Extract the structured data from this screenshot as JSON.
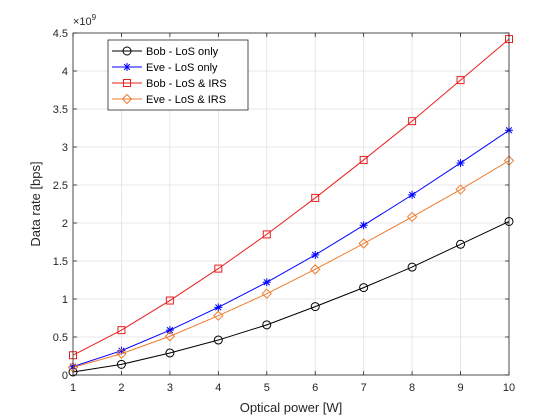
{
  "chart_data": {
    "type": "line",
    "xlabel": "Optical power [W]",
    "ylabel": "Data rate [bps]",
    "y_exponent_label": "×10",
    "y_exponent_power": "9",
    "x": [
      1,
      2,
      3,
      4,
      5,
      6,
      7,
      8,
      9,
      10
    ],
    "xlim": [
      1,
      10
    ],
    "ylim": [
      0,
      4.5
    ],
    "x_ticks": [
      "1",
      "2",
      "3",
      "4",
      "5",
      "6",
      "7",
      "8",
      "9",
      "10"
    ],
    "y_ticks": [
      "0",
      "0.5",
      "1",
      "1.5",
      "2",
      "2.5",
      "3",
      "3.5",
      "4",
      "4.5"
    ],
    "grid": true,
    "legend_position": "top-left",
    "series": [
      {
        "name": "Bob - LoS only",
        "color": "#000000",
        "marker": "circle",
        "values": [
          0.04,
          0.14,
          0.29,
          0.46,
          0.66,
          0.9,
          1.15,
          1.42,
          1.72,
          2.02
        ]
      },
      {
        "name": "Eve - LoS only",
        "color": "#0000ff",
        "marker": "star",
        "values": [
          0.11,
          0.32,
          0.59,
          0.89,
          1.22,
          1.58,
          1.97,
          2.37,
          2.79,
          3.22
        ]
      },
      {
        "name": "Bob - LoS & IRS",
        "color": "#e8201e",
        "marker": "square",
        "values": [
          0.26,
          0.59,
          0.98,
          1.4,
          1.85,
          2.33,
          2.83,
          3.34,
          3.88,
          4.42
        ]
      },
      {
        "name": "Eve - LoS & IRS",
        "color": "#ee7d31",
        "marker": "diamond",
        "values": [
          0.1,
          0.28,
          0.51,
          0.78,
          1.07,
          1.39,
          1.73,
          2.08,
          2.44,
          2.82
        ]
      }
    ]
  }
}
